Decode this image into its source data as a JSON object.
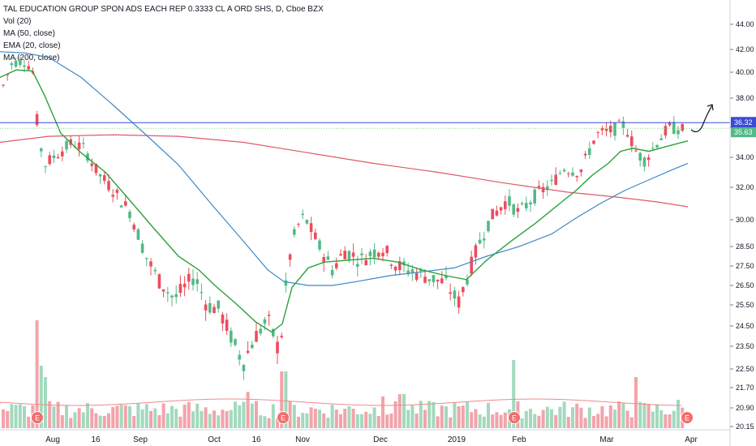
{
  "legend": {
    "title": "TAL EDUCATION GROUP SPON ADS EACH REP 0.3333 CL A ORD SHS, D, Cboe BZX",
    "vol": "Vol (20)",
    "ma50": "MA (50, close)",
    "ema20": "EMA (20, close)",
    "ma200": "MA (200, close)"
  },
  "colors": {
    "up": "#53b987",
    "down": "#eb4d5c",
    "vol_up": "#a3d9bd",
    "vol_down": "#f3a3aa",
    "ma50": "#3c89c8",
    "ema20": "#2aa13a",
    "ma200": "#e05a6a",
    "hline": "#3b4bd6",
    "price_badge": "#3b4bd6",
    "green_badge": "#53b987"
  },
  "chart_data": {
    "type": "candlestick",
    "y_ticks": [
      "44.00",
      "42.00",
      "40.00",
      "38.00",
      "36.00",
      "34.00",
      "32.00",
      "30.00",
      "28.50",
      "27.50",
      "26.50",
      "25.50",
      "24.50",
      "23.50",
      "22.50",
      "21.70",
      "20.90",
      "20.15"
    ],
    "x_ticks": [
      "Aug",
      "16",
      "Sep",
      "Oct",
      "16",
      "Nov",
      "Dec",
      "2019",
      "Feb",
      "Mar",
      "Apr"
    ],
    "price_label": "36.32",
    "ema_label": "35.63",
    "earnings_marker": "E",
    "earnings_dates_at_x_ticks": [
      "before Aug",
      "between 16 and Nov",
      "between 2019 and Feb",
      "before Apr"
    ],
    "horizontal_line_value": 36.32
  }
}
